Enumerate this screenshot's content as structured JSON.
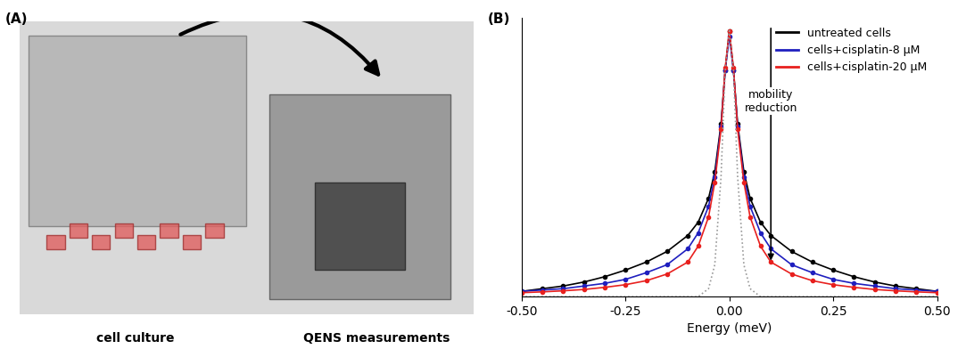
{
  "panel_a": {
    "label": "(A)",
    "captions": [
      "cell culture",
      "QENS measurements"
    ]
  },
  "chart_data": {
    "type": "line",
    "panel_label": "(B)",
    "x_label": "Energy (meV)",
    "x": [
      -0.5,
      -0.45,
      -0.4,
      -0.35,
      -0.3,
      -0.25,
      -0.2,
      -0.15,
      -0.1,
      -0.075,
      -0.05,
      -0.035,
      -0.02,
      -0.01,
      0,
      0.01,
      0.02,
      0.035,
      0.05,
      0.075,
      0.1,
      0.15,
      0.2,
      0.25,
      0.3,
      0.35,
      0.4,
      0.45,
      0.5
    ],
    "series": [
      {
        "name": "untreated cells",
        "color": "#000000",
        "marker": "o",
        "line_style": "solid",
        "values": [
          0.02,
          0.03,
          0.04,
          0.055,
          0.075,
          0.1,
          0.13,
          0.17,
          0.23,
          0.28,
          0.37,
          0.47,
          0.65,
          0.85,
          1.0,
          0.85,
          0.65,
          0.47,
          0.37,
          0.28,
          0.23,
          0.17,
          0.13,
          0.1,
          0.075,
          0.055,
          0.04,
          0.03,
          0.02
        ]
      },
      {
        "name": "cells+cisplatin-8 μM",
        "color": "#1f1fbf",
        "marker": "o",
        "line_style": "solid",
        "values": [
          0.02,
          0.025,
          0.03,
          0.04,
          0.05,
          0.065,
          0.09,
          0.12,
          0.18,
          0.24,
          0.34,
          0.45,
          0.64,
          0.85,
          0.98,
          0.85,
          0.64,
          0.45,
          0.34,
          0.24,
          0.18,
          0.12,
          0.09,
          0.065,
          0.05,
          0.04,
          0.03,
          0.025,
          0.02
        ]
      },
      {
        "name": "cells+cisplatin-20 μM",
        "color": "#e8201e",
        "marker": "o",
        "line_style": "solid",
        "values": [
          0.015,
          0.018,
          0.022,
          0.027,
          0.035,
          0.045,
          0.06,
          0.085,
          0.13,
          0.19,
          0.3,
          0.43,
          0.63,
          0.86,
          1.0,
          0.86,
          0.63,
          0.43,
          0.3,
          0.19,
          0.13,
          0.085,
          0.06,
          0.045,
          0.035,
          0.027,
          0.022,
          0.018,
          0.015
        ]
      },
      {
        "color": "#999999",
        "marker": "none",
        "line_style": "dotted",
        "values": [
          0,
          0,
          0,
          0,
          0,
          0,
          0,
          0,
          0,
          0,
          0.03,
          0.12,
          0.45,
          0.85,
          1.0,
          0.85,
          0.45,
          0.12,
          0.03,
          0,
          0,
          0,
          0,
          0,
          0,
          0,
          0,
          0,
          0
        ]
      }
    ],
    "xlim": [
      -0.5,
      0.5
    ],
    "xticks": [
      {
        "value": -0.5,
        "label": "-0.50"
      },
      {
        "value": -0.25,
        "label": "-0.25"
      },
      {
        "value": 0,
        "label": "0.00"
      },
      {
        "value": 0.25,
        "label": "0.25"
      },
      {
        "value": 0.5,
        "label": "0.50"
      }
    ],
    "ylim": [
      0,
      1.05
    ],
    "tick_labels": "x",
    "legend": "upper right",
    "annotations": [
      "mobility\nreduction"
    ]
  }
}
